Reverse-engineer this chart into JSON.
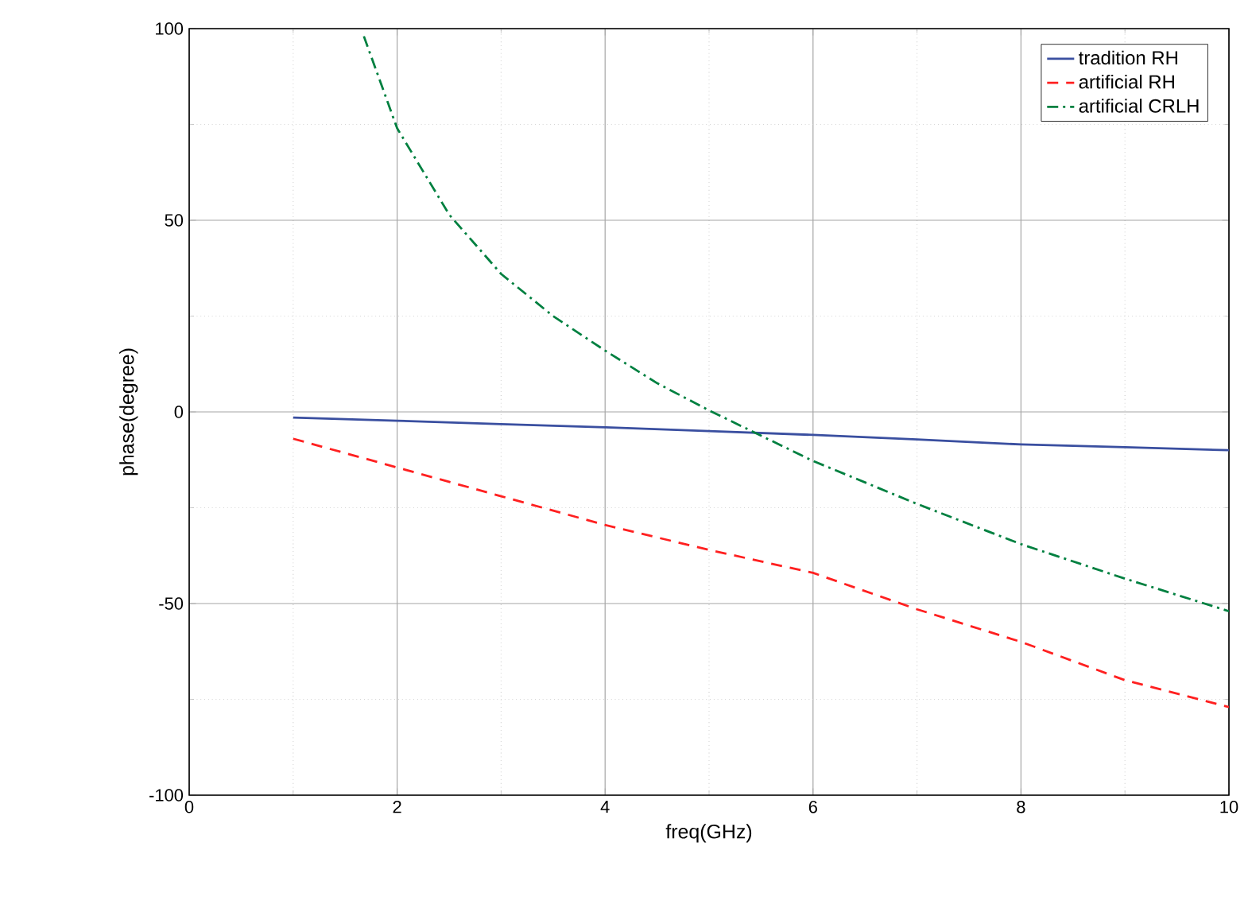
{
  "chart_data": {
    "type": "line",
    "xlabel": "freq(GHz)",
    "ylabel": "phase(degree)",
    "xlim": [
      0,
      10
    ],
    "ylim": [
      -100,
      100
    ],
    "xticks": [
      0,
      2,
      4,
      6,
      8,
      10
    ],
    "yticks": [
      -100,
      -50,
      0,
      50,
      100
    ],
    "grid": true,
    "legend": "top right",
    "series": [
      {
        "name": "tradition RH",
        "color": "#3a4fa0",
        "line_style": "solid",
        "x": [
          1,
          2,
          3,
          4,
          5,
          6,
          7,
          8,
          9,
          10
        ],
        "values": [
          -1.5,
          -2.3,
          -3.2,
          -4,
          -5,
          -6,
          -7.2,
          -8.5,
          -9.2,
          -10
        ]
      },
      {
        "name": "artificial RH",
        "color": "#ff2020",
        "line_style": "dashed",
        "x": [
          1,
          2,
          3,
          4,
          5,
          6,
          7,
          8,
          9,
          10
        ],
        "values": [
          -7,
          -14.5,
          -22,
          -29.5,
          -36,
          -42,
          -51.5,
          -60,
          -70,
          -77
        ]
      },
      {
        "name": "artificial CRLH",
        "color": "#008040",
        "line_style": "dashdot",
        "x": [
          1.68,
          2,
          2.5,
          3,
          3.5,
          4,
          4.5,
          5,
          6,
          7,
          8,
          9,
          10
        ],
        "values": [
          98,
          74,
          51.5,
          36,
          25,
          16,
          7.5,
          0.4,
          -12.8,
          -24,
          -34.5,
          -43.5,
          -52
        ]
      }
    ]
  }
}
